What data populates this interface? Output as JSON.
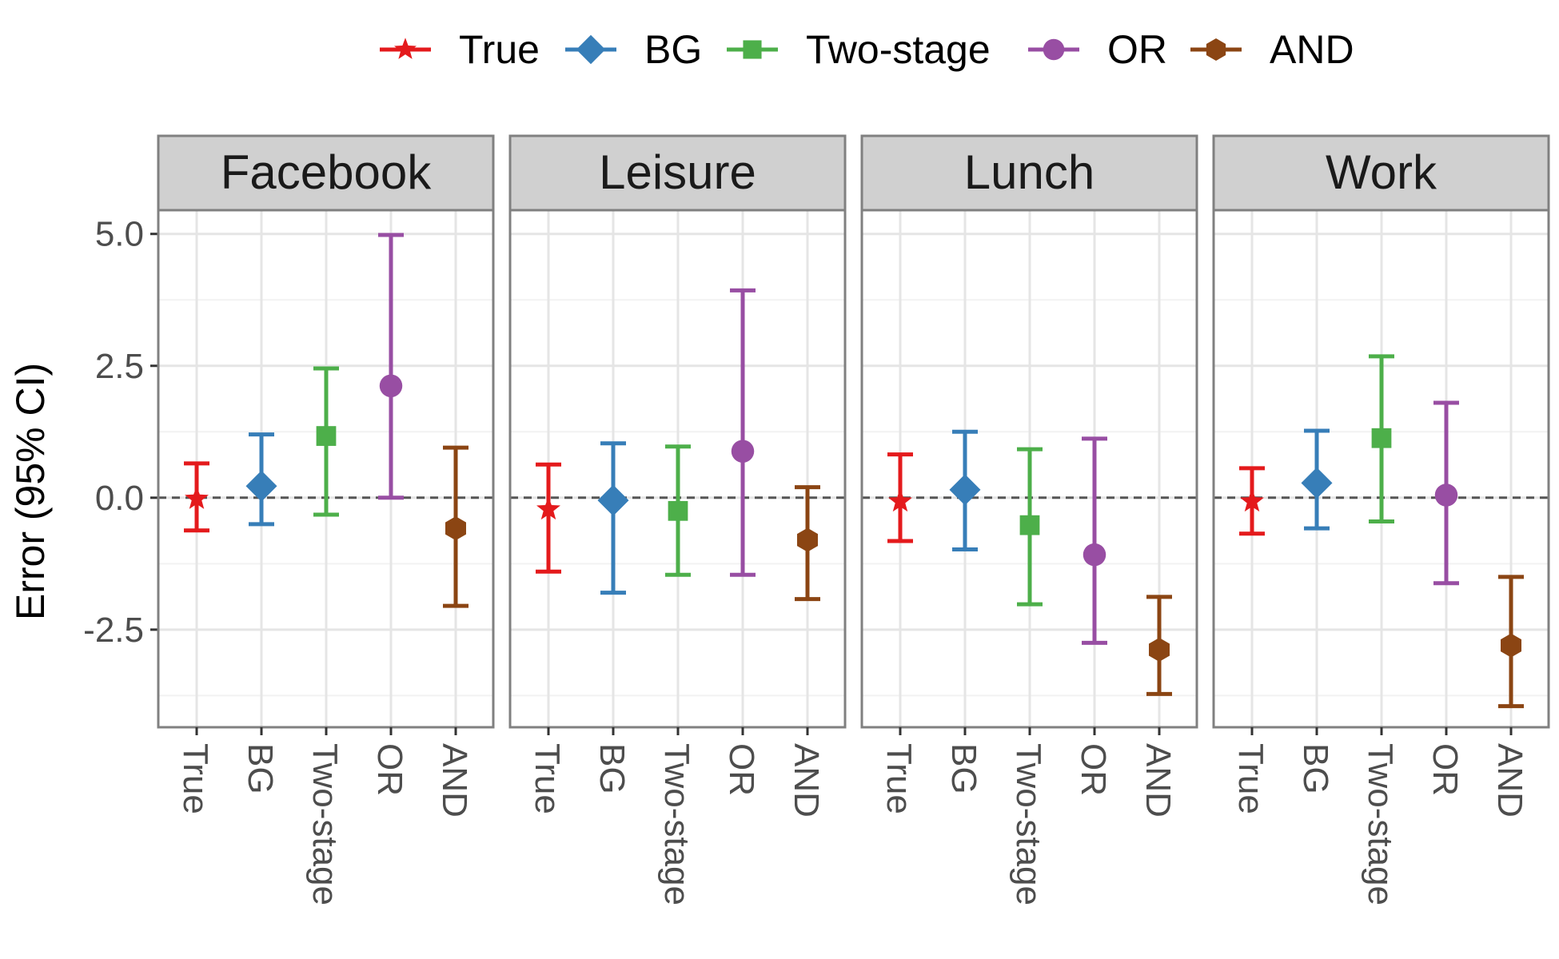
{
  "chart_data": {
    "type": "errorbar",
    "ylabel": "Error (95% CI)",
    "xlabel": "",
    "ylim": [
      -4.35,
      5.45
    ],
    "yticks": [
      5.0,
      2.5,
      0.0,
      -2.5
    ],
    "ytick_labels": [
      "5.0",
      "2.5",
      "0.0",
      "-2.5"
    ],
    "reference_line": 0,
    "categories": [
      "True",
      "BG",
      "Two-stage",
      "OR",
      "AND"
    ],
    "legend": [
      {
        "name": "True",
        "color": "#e41a1c",
        "shape": "star"
      },
      {
        "name": "BG",
        "color": "#377eb8",
        "shape": "diamond"
      },
      {
        "name": "Two-stage",
        "color": "#4daf4a",
        "shape": "square"
      },
      {
        "name": "OR",
        "color": "#984ea3",
        "shape": "circle"
      },
      {
        "name": "AND",
        "color": "#8b4513",
        "shape": "hexagon"
      }
    ],
    "panels": [
      {
        "title": "Facebook",
        "points": [
          {
            "method": "True",
            "estimate": -0.02,
            "lower": -0.62,
            "upper": 0.65
          },
          {
            "method": "BG",
            "estimate": 0.22,
            "lower": -0.5,
            "upper": 1.2
          },
          {
            "method": "Two-stage",
            "estimate": 1.17,
            "lower": -0.32,
            "upper": 2.45
          },
          {
            "method": "OR",
            "estimate": 2.12,
            "lower": 0.0,
            "upper": 4.98
          },
          {
            "method": "AND",
            "estimate": -0.58,
            "lower": -2.05,
            "upper": 0.95
          }
        ]
      },
      {
        "title": "Leisure",
        "points": [
          {
            "method": "True",
            "estimate": -0.22,
            "lower": -1.4,
            "upper": 0.63
          },
          {
            "method": "BG",
            "estimate": -0.05,
            "lower": -1.8,
            "upper": 1.03
          },
          {
            "method": "Two-stage",
            "estimate": -0.25,
            "lower": -1.46,
            "upper": 0.97
          },
          {
            "method": "OR",
            "estimate": 0.88,
            "lower": -1.46,
            "upper": 3.93
          },
          {
            "method": "AND",
            "estimate": -0.8,
            "lower": -1.92,
            "upper": 0.2
          }
        ]
      },
      {
        "title": "Lunch",
        "points": [
          {
            "method": "True",
            "estimate": -0.07,
            "lower": -0.82,
            "upper": 0.82
          },
          {
            "method": "BG",
            "estimate": 0.15,
            "lower": -0.98,
            "upper": 1.25
          },
          {
            "method": "Two-stage",
            "estimate": -0.52,
            "lower": -2.02,
            "upper": 0.92
          },
          {
            "method": "OR",
            "estimate": -1.08,
            "lower": -2.75,
            "upper": 1.12
          },
          {
            "method": "AND",
            "estimate": -2.88,
            "lower": -3.72,
            "upper": -1.88
          }
        ]
      },
      {
        "title": "Work",
        "points": [
          {
            "method": "True",
            "estimate": -0.07,
            "lower": -0.68,
            "upper": 0.56
          },
          {
            "method": "BG",
            "estimate": 0.28,
            "lower": -0.58,
            "upper": 1.27
          },
          {
            "method": "Two-stage",
            "estimate": 1.13,
            "lower": -0.45,
            "upper": 2.68
          },
          {
            "method": "OR",
            "estimate": 0.05,
            "lower": -1.62,
            "upper": 1.8
          },
          {
            "method": "AND",
            "estimate": -2.8,
            "lower": -3.95,
            "upper": -1.5
          }
        ]
      }
    ]
  }
}
